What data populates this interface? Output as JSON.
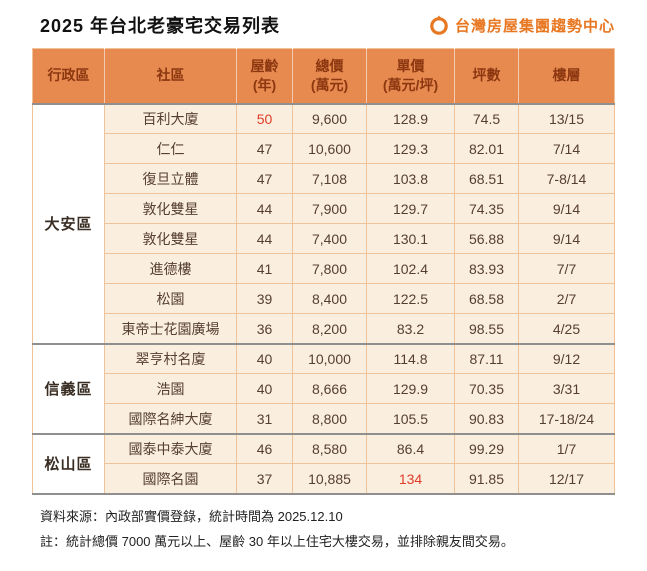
{
  "title": "2025 年台北老豪宅交易列表",
  "logo": {
    "text": "台灣房屋集團趨勢中心"
  },
  "colors": {
    "header_bg": "#E68A50",
    "header_text": "#8C3710",
    "row_bg": "#FAEEDF",
    "red": "#E03C28",
    "brand": "#E87722"
  },
  "table": {
    "headers": [
      {
        "key": "district",
        "label": "行政區",
        "sub": ""
      },
      {
        "key": "community",
        "label": "社區",
        "sub": ""
      },
      {
        "key": "age",
        "label": "屋齡",
        "sub": "(年)"
      },
      {
        "key": "total",
        "label": "總價",
        "sub": "(萬元)"
      },
      {
        "key": "unit",
        "label": "單價",
        "sub": "(萬元/坪)"
      },
      {
        "key": "ping",
        "label": "坪數",
        "sub": ""
      },
      {
        "key": "floor",
        "label": "樓層",
        "sub": ""
      }
    ],
    "groups": [
      {
        "district": "大安區",
        "rows": [
          {
            "community": "百利大廈",
            "age": "50",
            "age_red": true,
            "total": "9,600",
            "unit": "128.9",
            "unit_red": false,
            "ping": "74.5",
            "floor": "13/15"
          },
          {
            "community": "仁仁",
            "age": "47",
            "age_red": false,
            "total": "10,600",
            "unit": "129.3",
            "unit_red": false,
            "ping": "82.01",
            "floor": "7/14"
          },
          {
            "community": "復旦立體",
            "age": "47",
            "age_red": false,
            "total": "7,108",
            "unit": "103.8",
            "unit_red": false,
            "ping": "68.51",
            "floor": "7-8/14"
          },
          {
            "community": "敦化雙星",
            "age": "44",
            "age_red": false,
            "total": "7,900",
            "unit": "129.7",
            "unit_red": false,
            "ping": "74.35",
            "floor": "9/14"
          },
          {
            "community": "敦化雙星",
            "age": "44",
            "age_red": false,
            "total": "7,400",
            "unit": "130.1",
            "unit_red": false,
            "ping": "56.88",
            "floor": "9/14"
          },
          {
            "community": "進德樓",
            "age": "41",
            "age_red": false,
            "total": "7,800",
            "unit": "102.4",
            "unit_red": false,
            "ping": "83.93",
            "floor": "7/7"
          },
          {
            "community": "松園",
            "age": "39",
            "age_red": false,
            "total": "8,400",
            "unit": "122.5",
            "unit_red": false,
            "ping": "68.58",
            "floor": "2/7"
          },
          {
            "community": "東帝士花園廣場",
            "age": "36",
            "age_red": false,
            "total": "8,200",
            "unit": "83.2",
            "unit_red": false,
            "ping": "98.55",
            "floor": "4/25"
          }
        ]
      },
      {
        "district": "信義區",
        "rows": [
          {
            "community": "翠亨村名廈",
            "age": "40",
            "age_red": false,
            "total": "10,000",
            "unit": "114.8",
            "unit_red": false,
            "ping": "87.11",
            "floor": "9/12"
          },
          {
            "community": "浩園",
            "age": "40",
            "age_red": false,
            "total": "8,666",
            "unit": "129.9",
            "unit_red": false,
            "ping": "70.35",
            "floor": "3/31"
          },
          {
            "community": "國際名紳大廈",
            "age": "31",
            "age_red": false,
            "total": "8,800",
            "unit": "105.5",
            "unit_red": false,
            "ping": "90.83",
            "floor": "17-18/24"
          }
        ]
      },
      {
        "district": "松山區",
        "rows": [
          {
            "community": "國泰中泰大廈",
            "age": "46",
            "age_red": false,
            "total": "8,580",
            "unit": "86.4",
            "unit_red": false,
            "ping": "99.29",
            "floor": "1/7"
          },
          {
            "community": "國際名園",
            "age": "37",
            "age_red": false,
            "total": "10,885",
            "unit": "134",
            "unit_red": true,
            "ping": "91.85",
            "floor": "12/17"
          }
        ]
      }
    ]
  },
  "footer": {
    "source": "資料來源：內政部實價登錄，統計時間為 2025.12.10",
    "note": "註：統計總價 7000 萬元以上、屋齡 30 年以上住宅大樓交易，並排除親友間交易。"
  },
  "chart_data": {
    "type": "table",
    "title": "2025 年台北老豪宅交易列表",
    "columns": [
      "行政區",
      "社區",
      "屋齡(年)",
      "總價(萬元)",
      "單價(萬元/坪)",
      "坪數",
      "樓層"
    ],
    "rows": [
      [
        "大安區",
        "百利大廈",
        50,
        9600,
        128.9,
        74.5,
        "13/15"
      ],
      [
        "大安區",
        "仁仁",
        47,
        10600,
        129.3,
        82.01,
        "7/14"
      ],
      [
        "大安區",
        "復旦立體",
        47,
        7108,
        103.8,
        68.51,
        "7-8/14"
      ],
      [
        "大安區",
        "敦化雙星",
        44,
        7900,
        129.7,
        74.35,
        "9/14"
      ],
      [
        "大安區",
        "敦化雙星",
        44,
        7400,
        130.1,
        56.88,
        "9/14"
      ],
      [
        "大安區",
        "進德樓",
        41,
        7800,
        102.4,
        83.93,
        "7/7"
      ],
      [
        "大安區",
        "松園",
        39,
        8400,
        122.5,
        68.58,
        "2/7"
      ],
      [
        "大安區",
        "東帝士花園廣場",
        36,
        8200,
        83.2,
        98.55,
        "4/25"
      ],
      [
        "信義區",
        "翠亨村名廈",
        40,
        10000,
        114.8,
        87.11,
        "9/12"
      ],
      [
        "信義區",
        "浩園",
        40,
        8666,
        129.9,
        70.35,
        "3/31"
      ],
      [
        "信義區",
        "國際名紳大廈",
        31,
        8800,
        105.5,
        90.83,
        "17-18/24"
      ],
      [
        "松山區",
        "國泰中泰大廈",
        46,
        8580,
        86.4,
        99.29,
        "1/7"
      ],
      [
        "松山區",
        "國際名園",
        37,
        10885,
        134,
        91.85,
        "12/17"
      ]
    ],
    "highlights": [
      {
        "row": 0,
        "column": "屋齡(年)",
        "color": "#E03C28"
      },
      {
        "row": 12,
        "column": "單價(萬元/坪)",
        "color": "#E03C28"
      }
    ]
  }
}
